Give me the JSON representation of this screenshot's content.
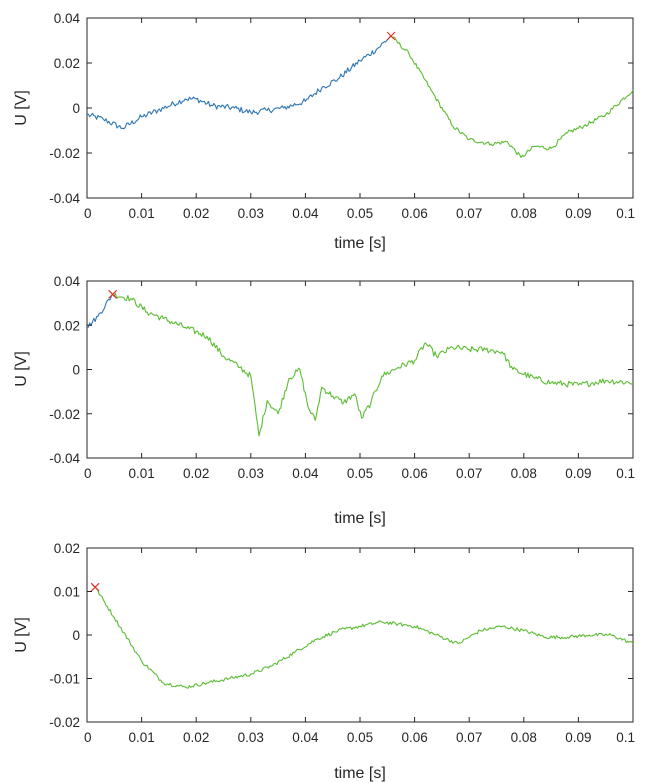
{
  "colors": {
    "before": "#2E75B6",
    "after": "#5BBE32",
    "marker": "#E0342C",
    "axis": "#262626"
  },
  "chart_data": [
    {
      "type": "line",
      "title": "",
      "xlabel": "time [s]",
      "ylabel": "U [V]",
      "xlim": [
        0,
        0.1
      ],
      "ylim": [
        -0.04,
        0.04
      ],
      "xticks": [
        0,
        0.01,
        0.02,
        0.03,
        0.04,
        0.05,
        0.06,
        0.07,
        0.08,
        0.09,
        0.1
      ],
      "xtick_labels": [
        "0",
        "0.01",
        "0.02",
        "0.03",
        "0.04",
        "0.05",
        "0.06",
        "0.07",
        "0.08",
        "0.09",
        "0.1"
      ],
      "yticks": [
        -0.04,
        -0.02,
        0,
        0.02,
        0.04
      ],
      "ytick_labels": [
        "-0.04",
        "-0.02",
        "0",
        "0.02",
        "0.04"
      ],
      "grid": false,
      "marker": {
        "x": 0.0557,
        "y": 0.032,
        "symbol": "x",
        "color": "#E0342C"
      },
      "series": [
        {
          "color": "#2E75B6",
          "noise": 0.0013,
          "x": [
            0,
            0.003,
            0.0065,
            0.01,
            0.013,
            0.018,
            0.02,
            0.023,
            0.027,
            0.03,
            0.033,
            0.036,
            0.04,
            0.043,
            0.046,
            0.05,
            0.053,
            0.0557
          ],
          "y": [
            -0.003,
            -0.005,
            -0.009,
            -0.004,
            -0.001,
            0.004,
            0.004,
            0.001,
            0.0,
            -0.002,
            -0.001,
            0.0,
            0.003,
            0.009,
            0.013,
            0.021,
            0.026,
            0.032
          ]
        },
        {
          "color": "#5BBE32",
          "noise": 0.0009,
          "x": [
            0.0557,
            0.059,
            0.063,
            0.067,
            0.07,
            0.074,
            0.077,
            0.0795,
            0.082,
            0.085,
            0.088,
            0.091,
            0.095,
            0.1
          ],
          "y": [
            0.032,
            0.024,
            0.008,
            -0.008,
            -0.014,
            -0.016,
            -0.015,
            -0.022,
            -0.017,
            -0.018,
            -0.011,
            -0.008,
            -0.003,
            0.008
          ]
        }
      ]
    },
    {
      "type": "line",
      "title": "",
      "xlabel": "time [s]",
      "ylabel": "U [V]",
      "xlim": [
        0,
        0.1
      ],
      "ylim": [
        -0.04,
        0.04
      ],
      "xticks": [
        0,
        0.01,
        0.02,
        0.03,
        0.04,
        0.05,
        0.06,
        0.07,
        0.08,
        0.09,
        0.1
      ],
      "xtick_labels": [
        "0",
        "0.01",
        "0.02",
        "0.03",
        "0.04",
        "0.05",
        "0.06",
        "0.07",
        "0.08",
        "0.09",
        "0.1"
      ],
      "yticks": [
        -0.04,
        -0.02,
        0,
        0.02,
        0.04
      ],
      "ytick_labels": [
        "-0.04",
        "-0.02",
        "0",
        "0.02",
        "0.04"
      ],
      "grid": false,
      "marker": {
        "x": 0.0047,
        "y": 0.034,
        "symbol": "x",
        "color": "#E0342C"
      },
      "series": [
        {
          "color": "#2E75B6",
          "noise": 0.0012,
          "x": [
            0,
            0.002,
            0.0047
          ],
          "y": [
            0.019,
            0.024,
            0.034
          ]
        },
        {
          "color": "#5BBE32",
          "noise": 0.0014,
          "x": [
            0.0047,
            0.008,
            0.011,
            0.014,
            0.018,
            0.022,
            0.025,
            0.028,
            0.03,
            0.0315,
            0.033,
            0.035,
            0.037,
            0.039,
            0.0405,
            0.0418,
            0.043,
            0.045,
            0.047,
            0.049,
            0.0503,
            0.052,
            0.054,
            0.057,
            0.06,
            0.062,
            0.064,
            0.067,
            0.07,
            0.073,
            0.076,
            0.078,
            0.082,
            0.085,
            0.09,
            0.095,
            0.1
          ],
          "y": [
            0.034,
            0.032,
            0.026,
            0.023,
            0.019,
            0.015,
            0.006,
            0.001,
            -0.003,
            -0.03,
            -0.014,
            -0.02,
            -0.004,
            0.0,
            -0.017,
            -0.023,
            -0.008,
            -0.012,
            -0.015,
            -0.011,
            -0.022,
            -0.015,
            -0.003,
            0.001,
            0.004,
            0.012,
            0.006,
            0.01,
            0.009,
            0.009,
            0.008,
            0.0,
            -0.004,
            -0.006,
            -0.007,
            -0.005,
            -0.006
          ]
        }
      ]
    },
    {
      "type": "line",
      "title": "",
      "xlabel": "time [s]",
      "ylabel": "U [V]",
      "xlim": [
        0,
        0.1
      ],
      "ylim": [
        -0.02,
        0.02
      ],
      "xticks": [
        0,
        0.01,
        0.02,
        0.03,
        0.04,
        0.05,
        0.06,
        0.07,
        0.08,
        0.09,
        0.1
      ],
      "xtick_labels": [
        "0",
        "0.01",
        "0.02",
        "0.03",
        "0.04",
        "0.05",
        "0.06",
        "0.07",
        "0.08",
        "0.09",
        "0.1"
      ],
      "yticks": [
        -0.02,
        -0.01,
        0,
        0.01,
        0.02
      ],
      "ytick_labels": [
        "-0.02",
        "-0.01",
        "0",
        "0.01",
        "0.02"
      ],
      "grid": false,
      "marker": {
        "x": 0.0015,
        "y": 0.011,
        "symbol": "x",
        "color": "#E0342C"
      },
      "series": [
        {
          "color": "#2E75B6",
          "noise": 0.0,
          "x": [
            0.001,
            0.0015
          ],
          "y": [
            0.0115,
            0.011
          ]
        },
        {
          "color": "#5BBE32",
          "noise": 0.0004,
          "x": [
            0.0015,
            0.005,
            0.01,
            0.014,
            0.018,
            0.022,
            0.026,
            0.03,
            0.034,
            0.038,
            0.042,
            0.046,
            0.05,
            0.054,
            0.057,
            0.06,
            0.064,
            0.068,
            0.072,
            0.076,
            0.08,
            0.084,
            0.088,
            0.092,
            0.096,
            0.1
          ],
          "y": [
            0.011,
            0.004,
            -0.006,
            -0.011,
            -0.012,
            -0.011,
            -0.01,
            -0.009,
            -0.007,
            -0.004,
            -0.001,
            0.001,
            0.002,
            0.003,
            0.0025,
            0.002,
            0.0,
            -0.002,
            0.001,
            0.002,
            0.001,
            -0.0005,
            -0.0005,
            0.0,
            0.0,
            -0.002
          ]
        }
      ]
    }
  ]
}
